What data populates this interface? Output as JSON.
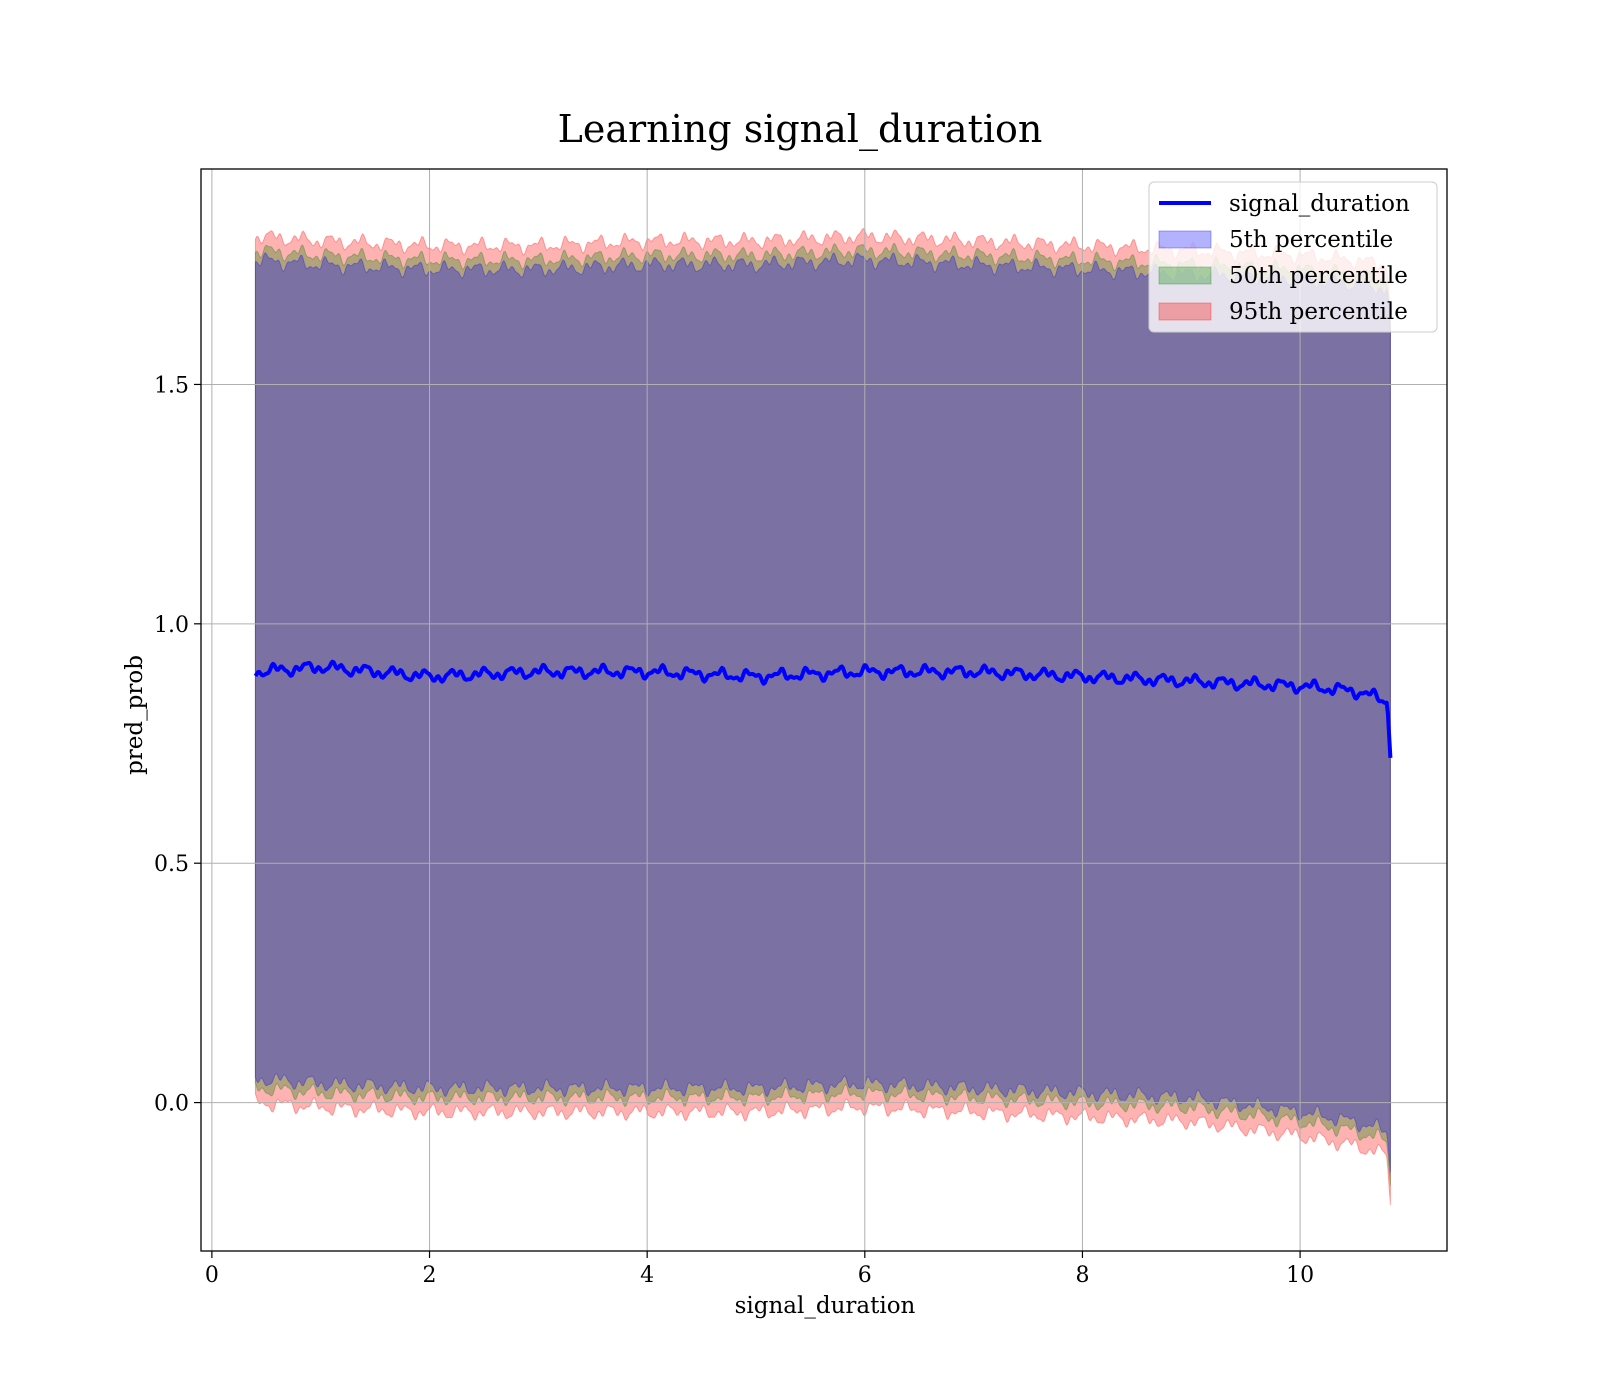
{
  "chart_data": {
    "type": "line",
    "title": "Learning signal_duration",
    "xlabel": "signal_duration",
    "ylabel": "pred_prob",
    "xlim": [
      -0.1,
      11.35
    ],
    "ylim": [
      -0.31,
      1.95
    ],
    "xticks": [
      0,
      2,
      4,
      6,
      8,
      10
    ],
    "yticks": [
      0.0,
      0.5,
      1.0,
      1.5
    ],
    "xtick_labels": [
      "0",
      "2",
      "4",
      "6",
      "8",
      "10"
    ],
    "ytick_labels": [
      "0.0",
      "0.5",
      "1.0",
      "1.5"
    ],
    "grid": true,
    "legend_position": "top-right",
    "x": [
      0.4,
      1.0,
      2.0,
      3.0,
      4.0,
      5.0,
      6.0,
      7.0,
      8.0,
      9.0,
      10.0,
      10.5,
      10.8,
      10.83
    ],
    "series": [
      {
        "name": "signal_duration",
        "kind": "line",
        "color": "#0000ff",
        "values": [
          0.9,
          0.91,
          0.89,
          0.9,
          0.9,
          0.89,
          0.9,
          0.9,
          0.89,
          0.88,
          0.87,
          0.86,
          0.84,
          0.72
        ]
      },
      {
        "name": "5th percentile",
        "kind": "band",
        "color": "#0000ff",
        "lower": [
          0.05,
          0.04,
          0.03,
          0.03,
          0.03,
          0.03,
          0.04,
          0.03,
          0.02,
          0.01,
          -0.02,
          -0.04,
          -0.06,
          -0.14
        ],
        "upper": [
          1.76,
          1.75,
          1.74,
          1.74,
          1.75,
          1.75,
          1.76,
          1.75,
          1.74,
          1.73,
          1.72,
          1.71,
          1.7,
          1.6
        ]
      },
      {
        "name": "50th percentile",
        "kind": "band",
        "color": "#008000",
        "lower": [
          0.03,
          0.02,
          0.01,
          0.01,
          0.01,
          0.01,
          0.02,
          0.01,
          0.0,
          -0.01,
          -0.04,
          -0.06,
          -0.08,
          -0.17
        ],
        "upper": [
          1.78,
          1.77,
          1.76,
          1.76,
          1.77,
          1.77,
          1.78,
          1.77,
          1.76,
          1.75,
          1.74,
          1.73,
          1.72,
          1.62
        ]
      },
      {
        "name": "95th percentile",
        "kind": "band",
        "color": "#ff0000",
        "lower": [
          0.0,
          -0.01,
          -0.02,
          -0.02,
          -0.02,
          -0.02,
          -0.01,
          -0.02,
          -0.03,
          -0.04,
          -0.07,
          -0.09,
          -0.11,
          -0.21
        ],
        "upper": [
          1.81,
          1.8,
          1.79,
          1.79,
          1.8,
          1.8,
          1.81,
          1.8,
          1.79,
          1.78,
          1.77,
          1.76,
          1.75,
          1.65
        ]
      }
    ]
  }
}
